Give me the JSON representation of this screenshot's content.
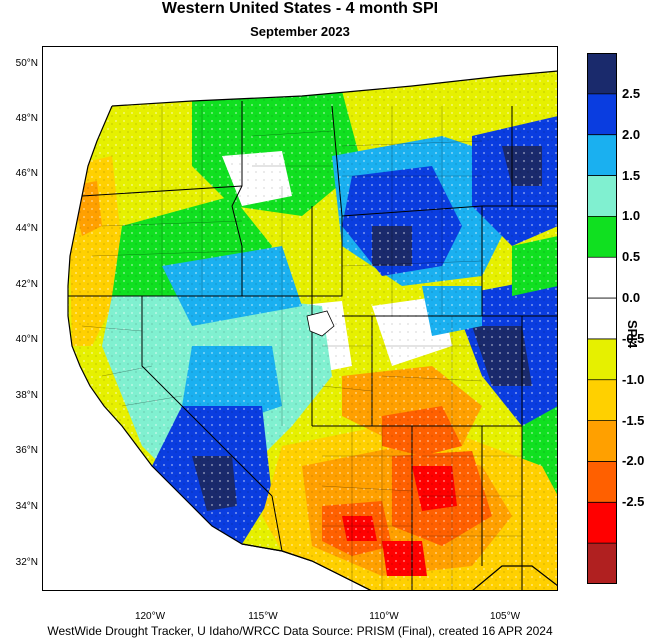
{
  "title": "Western United States - 4 month SPI",
  "subtitle": "September 2023",
  "footer": "WestWide Drought Tracker, U Idaho/WRCC Data Source: PRISM (Final), created 16 APR 2024",
  "map": {
    "latitude_labels": [
      "50°N",
      "48°N",
      "46°N",
      "44°N",
      "42°N",
      "40°N",
      "38°N",
      "36°N",
      "34°N",
      "32°N"
    ],
    "longitude_labels": [
      "120°W",
      "115°W",
      "110°W",
      "105°W"
    ]
  },
  "colorbar": {
    "title": "SPI4",
    "labels": [
      "2.5",
      "2.0",
      "1.5",
      "1.0",
      "0.5",
      "0.0",
      "-0.5",
      "-1.0",
      "-1.5",
      "-2.0",
      "-2.5"
    ],
    "colors": [
      "#1a2a6c",
      "#0a3de0",
      "#1ab0f0",
      "#80f0d0",
      "#10e020",
      "#ffffff",
      "#ffffff",
      "#e6f000",
      "#ffd000",
      "#ffa000",
      "#ff6000",
      "#ff0000",
      "#b02020"
    ]
  }
}
